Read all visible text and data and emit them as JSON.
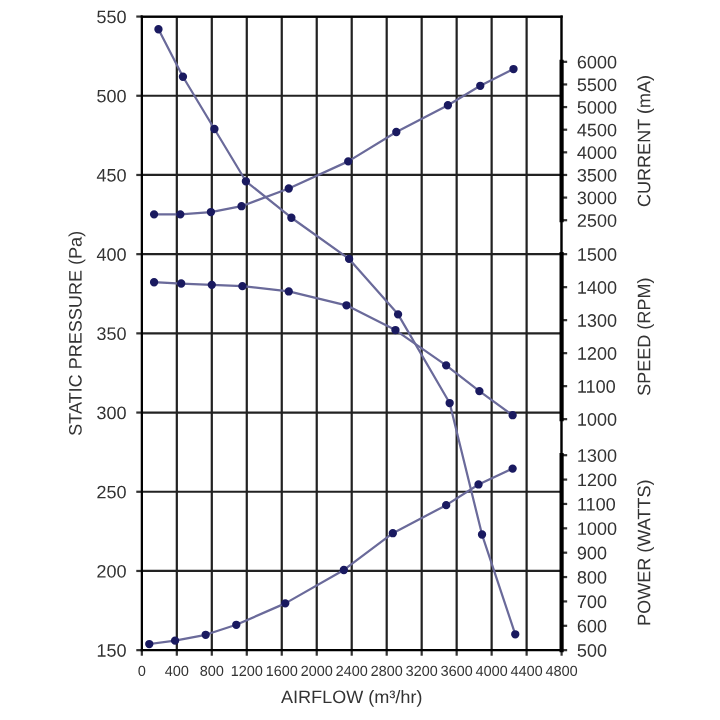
{
  "chart_data": [
    {
      "type": "line",
      "xlabel": "AIRFLOW (m³/hr)",
      "ylabel": "STATIC PRESSURE (Pa)",
      "y2label": "CURRENT (mA)",
      "y3label": "SPEED (RPM)",
      "xlim": [
        0,
        4800
      ],
      "xticks": [
        0,
        400,
        800,
        1200,
        1600,
        2000,
        2400,
        2800,
        3200,
        3600,
        4000,
        4400,
        4800
      ],
      "ylim": [
        150,
        550
      ],
      "yticks": [
        150,
        200,
        250,
        300,
        350,
        400,
        450,
        500,
        550
      ],
      "y2lim": [
        -7000,
        7000
      ],
      "y2ticks": [
        2500,
        3000,
        3500,
        4000,
        4500,
        5000,
        5500,
        6000
      ],
      "y3lim": [
        300,
        2220
      ],
      "y3ticks": [
        1000,
        1100,
        1200,
        1300,
        1400,
        1500
      ],
      "grid": true,
      "marker": "circle",
      "line_style": "solid",
      "series": [
        {
          "color": "#6a6a9a",
          "x": [
            190,
            470,
            830,
            1190,
            1710,
            2370,
            2930,
            3520,
            3890,
            4270
          ],
          "values": [
            542,
            512,
            479,
            446,
            423,
            397,
            362,
            306,
            223,
            160
          ]
        },
        {
          "color": "#6a6a9a",
          "axis": "y2",
          "x": [
            140,
            440,
            790,
            1140,
            1680,
            2360,
            2910,
            3500,
            3870,
            4250
          ],
          "values": [
            2630,
            2630,
            2680,
            2810,
            3200,
            3800,
            4450,
            5040,
            5470,
            5840
          ]
        },
        {
          "color": "#6a6a9a",
          "axis": "y3",
          "x": [
            140,
            450,
            800,
            1150,
            1680,
            2340,
            2900,
            3480,
            3860,
            4240
          ],
          "values": [
            1415,
            1411,
            1407,
            1403,
            1387,
            1345,
            1270,
            1163,
            1085,
            1012
          ]
        }
      ]
    },
    {
      "type": "line",
      "ylabel": "POWER (WATTS)",
      "tick_labels": "y",
      "xlim": [
        0,
        4800
      ],
      "ylim": [
        500,
        3100
      ],
      "yticks": [
        500,
        600,
        700,
        800,
        900,
        1000,
        1100,
        1200,
        1300
      ],
      "marker": "circle",
      "line_style": "solid",
      "series": [
        {
          "color": "#6a6a9a",
          "x": [
            85,
            380,
            730,
            1080,
            1640,
            2310,
            2870,
            3480,
            3850,
            4240
          ],
          "values": [
            525,
            539,
            563,
            604,
            692,
            829,
            980,
            1095,
            1180,
            1245
          ]
        }
      ]
    }
  ]
}
